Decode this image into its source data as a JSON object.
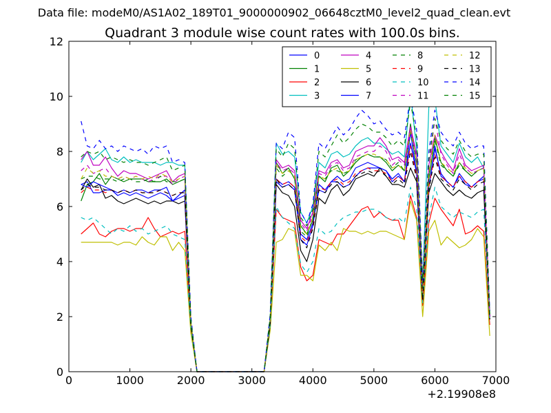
{
  "chart_data": {
    "type": "line",
    "supertitle": "Data file: modeM0/AS1A02_189T01_9000000902_06648cztM0_level2_quad_clean.evt",
    "title": "Quadrant 3 module wise count rates with 100.0s bins.",
    "xlabel": "",
    "ylabel": "",
    "x_offset_label": "+2.19908e8",
    "xlim": [
      0,
      7000
    ],
    "ylim": [
      0,
      12
    ],
    "xticks": [
      "0",
      "1000",
      "2000",
      "3000",
      "4000",
      "5000",
      "6000",
      "7000"
    ],
    "yticks": [
      "0",
      "2",
      "4",
      "6",
      "8",
      "10",
      "12"
    ],
    "grid": false,
    "legend_position": "top-right",
    "x": [
      200,
      300,
      400,
      500,
      600,
      700,
      800,
      900,
      1000,
      1100,
      1200,
      1300,
      1400,
      1500,
      1600,
      1700,
      1800,
      1900,
      2000,
      2100,
      2200,
      2300,
      2400,
      2500,
      2600,
      2700,
      2800,
      2900,
      3000,
      3100,
      3200,
      3300,
      3400,
      3500,
      3600,
      3700,
      3800,
      3900,
      4000,
      4100,
      4200,
      4300,
      4400,
      4500,
      4600,
      4700,
      4800,
      4900,
      5000,
      5100,
      5200,
      5300,
      5400,
      5500,
      5600,
      5700,
      5800,
      5900,
      6000,
      6100,
      6200,
      6300,
      6400,
      6500,
      6600,
      6700,
      6800,
      6900
    ],
    "series": [
      {
        "name": "0",
        "color": "#0000ff",
        "dash": false,
        "values": [
          6.8,
          6.9,
          6.5,
          6.5,
          6.6,
          6.6,
          6.5,
          6.6,
          6.5,
          6.6,
          6.6,
          6.5,
          6.6,
          6.6,
          6.7,
          6.2,
          6.4,
          6.6,
          1.8,
          0,
          0,
          0,
          0,
          0,
          0,
          0,
          0,
          0,
          0,
          0,
          0,
          1.8,
          7.0,
          6.8,
          6.9,
          6.7,
          5.0,
          4.8,
          5.4,
          6.6,
          6.5,
          6.9,
          6.9,
          6.7,
          6.8,
          7.1,
          7.3,
          7.4,
          7.4,
          7.4,
          7.3,
          6.9,
          7.1,
          6.9,
          8.7,
          7.2,
          2.8,
          6.7,
          8.1,
          7.2,
          6.9,
          6.7,
          7.2,
          6.9,
          6.7,
          6.9,
          7.1,
          2.0
        ]
      },
      {
        "name": "1",
        "color": "#008000",
        "dash": false,
        "values": [
          6.2,
          6.8,
          6.9,
          7.2,
          6.8,
          7.1,
          7.0,
          6.9,
          7.0,
          7.0,
          7.0,
          6.9,
          6.9,
          6.9,
          7.0,
          6.8,
          6.9,
          7.0,
          1.7,
          0,
          0,
          0,
          0,
          0,
          0,
          0,
          0,
          0,
          0,
          0,
          0,
          1.9,
          7.6,
          7.2,
          7.4,
          7.0,
          5.3,
          5.0,
          5.5,
          7.1,
          6.9,
          7.4,
          7.5,
          7.1,
          7.3,
          7.6,
          7.8,
          7.9,
          7.8,
          7.8,
          7.6,
          7.3,
          7.5,
          7.3,
          9.0,
          7.5,
          2.9,
          7.0,
          8.5,
          7.6,
          7.3,
          7.1,
          7.6,
          7.3,
          7.1,
          7.3,
          7.4,
          2.0
        ]
      },
      {
        "name": "2",
        "color": "#ff0000",
        "dash": false,
        "values": [
          5.0,
          5.2,
          5.4,
          5.0,
          4.9,
          5.1,
          5.2,
          5.2,
          5.1,
          5.2,
          5.2,
          5.6,
          5.2,
          4.9,
          5.0,
          5.1,
          5.0,
          5.1,
          1.5,
          0,
          0,
          0,
          0,
          0,
          0,
          0,
          0,
          0,
          0,
          0,
          0,
          1.6,
          5.9,
          5.6,
          5.5,
          5.4,
          3.8,
          3.3,
          3.5,
          4.8,
          4.7,
          4.6,
          5.0,
          5.0,
          5.3,
          5.6,
          5.9,
          6.0,
          5.6,
          5.8,
          5.6,
          5.5,
          5.5,
          4.8,
          6.4,
          5.6,
          2.4,
          5.4,
          6.3,
          5.9,
          5.6,
          5.3,
          5.9,
          5.0,
          5.1,
          5.3,
          5.1,
          1.7
        ]
      },
      {
        "name": "3",
        "color": "#00bfbf",
        "dash": false,
        "values": [
          7.6,
          8.0,
          7.7,
          7.9,
          8.1,
          7.7,
          7.6,
          7.8,
          7.6,
          7.7,
          7.6,
          7.6,
          7.6,
          7.5,
          7.6,
          7.6,
          7.5,
          7.5,
          1.8,
          0,
          0,
          0,
          0,
          0,
          0,
          0,
          0,
          0,
          0,
          0,
          0,
          2.0,
          8.3,
          7.9,
          8.0,
          7.8,
          5.8,
          5.4,
          6.0,
          7.6,
          7.4,
          7.9,
          8.0,
          7.8,
          7.9,
          8.2,
          8.4,
          8.5,
          8.3,
          8.3,
          8.1,
          7.9,
          8.0,
          7.8,
          10.1,
          8.1,
          3.2,
          9.6,
          9.9,
          8.2,
          7.9,
          7.6,
          8.3,
          7.8,
          7.6,
          7.8,
          7.4,
          2.1
        ]
      },
      {
        "name": "4",
        "color": "#bf00bf",
        "dash": false,
        "values": [
          7.7,
          8.0,
          7.5,
          7.5,
          7.8,
          7.4,
          7.1,
          7.3,
          7.2,
          7.2,
          7.1,
          7.0,
          7.1,
          7.2,
          7.3,
          6.9,
          7.1,
          7.2,
          1.8,
          0,
          0,
          0,
          0,
          0,
          0,
          0,
          0,
          0,
          0,
          0,
          0,
          1.9,
          7.7,
          7.4,
          7.5,
          7.3,
          5.5,
          5.2,
          5.8,
          7.3,
          7.2,
          7.6,
          7.7,
          7.4,
          7.5,
          8.0,
          8.1,
          8.2,
          8.2,
          8.5,
          8.2,
          7.7,
          7.8,
          7.6,
          8.9,
          7.9,
          3.0,
          7.5,
          8.6,
          8.0,
          7.6,
          7.3,
          8.1,
          7.5,
          7.3,
          7.4,
          7.5,
          2.0
        ]
      },
      {
        "name": "5",
        "color": "#bfbf00",
        "dash": false,
        "values": [
          4.7,
          4.7,
          4.7,
          4.7,
          4.7,
          4.7,
          4.6,
          4.7,
          4.7,
          4.6,
          4.9,
          4.7,
          4.6,
          4.9,
          4.9,
          4.4,
          4.7,
          4.4,
          1.4,
          0,
          0,
          0,
          0,
          0,
          0,
          0,
          0,
          0,
          0,
          0,
          0,
          1.5,
          4.7,
          4.8,
          5.2,
          5.1,
          3.5,
          3.5,
          3.3,
          4.6,
          4.4,
          4.7,
          4.4,
          5.2,
          5.1,
          5.1,
          5.0,
          5.1,
          5.0,
          5.1,
          5.1,
          5.0,
          4.9,
          4.8,
          6.2,
          5.5,
          2.0,
          5.1,
          5.5,
          4.6,
          4.9,
          4.7,
          4.5,
          4.6,
          4.8,
          5.2,
          4.9,
          1.3
        ]
      },
      {
        "name": "6",
        "color": "#000000",
        "dash": false,
        "values": [
          6.6,
          7.0,
          6.7,
          6.8,
          6.3,
          6.4,
          6.2,
          6.1,
          6.2,
          6.3,
          6.2,
          6.1,
          6.2,
          6.1,
          6.2,
          6.2,
          6.1,
          6.2,
          1.7,
          0,
          0,
          0,
          0,
          0,
          0,
          0,
          0,
          0,
          0,
          0,
          0,
          1.7,
          6.8,
          6.5,
          6.4,
          6.0,
          4.4,
          4.0,
          4.8,
          6.3,
          6.1,
          6.6,
          6.8,
          6.4,
          6.6,
          7.0,
          7.1,
          7.2,
          7.1,
          7.4,
          7.1,
          6.8,
          6.8,
          6.7,
          7.4,
          6.9,
          2.6,
          6.5,
          7.2,
          6.9,
          6.6,
          6.4,
          6.6,
          6.4,
          6.3,
          6.5,
          6.6,
          1.9
        ]
      },
      {
        "name": "7",
        "color": "#0000ff",
        "dash": false,
        "values": [
          6.8,
          6.7,
          6.9,
          6.8,
          6.7,
          6.6,
          6.4,
          6.5,
          6.4,
          6.5,
          6.4,
          6.3,
          6.4,
          6.5,
          6.4,
          6.2,
          6.3,
          6.4,
          1.7,
          0,
          0,
          0,
          0,
          0,
          0,
          0,
          0,
          0,
          0,
          0,
          0,
          1.8,
          6.9,
          6.7,
          6.8,
          6.6,
          4.8,
          4.6,
          5.3,
          6.8,
          6.6,
          6.9,
          7.1,
          6.9,
          7.0,
          7.4,
          7.5,
          7.6,
          7.5,
          7.4,
          7.3,
          7.0,
          7.2,
          6.9,
          8.3,
          7.2,
          2.7,
          6.7,
          8.2,
          7.1,
          6.9,
          6.7,
          7.1,
          6.8,
          6.7,
          6.9,
          7.0,
          2.0
        ]
      },
      {
        "name": "8",
        "color": "#008000",
        "dash": true,
        "values": [
          7.0,
          7.1,
          7.1,
          7.0,
          7.0,
          7.0,
          6.9,
          7.0,
          7.0,
          6.9,
          6.9,
          7.0,
          6.9,
          7.1,
          6.9,
          6.9,
          6.9,
          7.0,
          1.7,
          0,
          0,
          0,
          0,
          0,
          0,
          0,
          0,
          0,
          0,
          0,
          0,
          1.9,
          7.4,
          7.1,
          7.3,
          7.1,
          5.1,
          4.9,
          5.6,
          7.1,
          7.0,
          7.3,
          7.3,
          7.2,
          7.3,
          7.7,
          7.8,
          7.9,
          7.8,
          7.8,
          7.7,
          7.4,
          7.6,
          7.3,
          8.7,
          7.6,
          2.8,
          7.1,
          8.4,
          7.5,
          7.3,
          7.1,
          7.5,
          7.3,
          7.1,
          7.3,
          7.4,
          2.0
        ]
      },
      {
        "name": "9",
        "color": "#ff0000",
        "dash": true,
        "values": [
          6.5,
          6.7,
          6.6,
          6.6,
          6.5,
          6.6,
          6.5,
          6.6,
          6.5,
          6.6,
          6.5,
          6.5,
          6.5,
          6.6,
          6.5,
          6.4,
          6.5,
          6.5,
          1.7,
          0,
          0,
          0,
          0,
          0,
          0,
          0,
          0,
          0,
          0,
          0,
          0,
          1.8,
          7.0,
          6.8,
          6.9,
          6.7,
          4.9,
          4.7,
          5.3,
          6.7,
          6.6,
          6.9,
          7.0,
          6.8,
          6.9,
          7.2,
          7.3,
          7.4,
          7.3,
          7.3,
          7.2,
          6.9,
          7.1,
          6.9,
          8.2,
          7.1,
          2.7,
          6.7,
          7.9,
          7.1,
          6.9,
          6.7,
          7.1,
          6.9,
          6.7,
          6.9,
          7.0,
          1.9
        ]
      },
      {
        "name": "10",
        "color": "#00bfbf",
        "dash": true,
        "values": [
          5.6,
          5.5,
          5.6,
          5.4,
          5.2,
          5.0,
          5.2,
          5.1,
          5.3,
          5.1,
          5.2,
          5.0,
          5.1,
          5.2,
          5.3,
          5.0,
          4.9,
          4.8,
          1.6,
          0,
          0,
          0,
          0,
          0,
          0,
          0,
          0,
          0,
          0,
          0,
          0,
          1.7,
          6.0,
          5.6,
          5.4,
          5.2,
          3.9,
          3.6,
          4.0,
          5.2,
          5.0,
          5.1,
          5.4,
          5.6,
          5.7,
          5.8,
          5.8,
          5.9,
          5.9,
          5.8,
          5.6,
          5.5,
          5.6,
          5.4,
          6.7,
          5.9,
          2.5,
          5.6,
          6.7,
          6.0,
          5.8,
          5.6,
          5.8,
          5.7,
          5.6,
          5.8,
          5.9,
          1.8
        ]
      },
      {
        "name": "11",
        "color": "#bf00bf",
        "dash": true,
        "values": [
          7.3,
          7.5,
          7.2,
          7.3,
          7.4,
          7.1,
          7.0,
          7.1,
          7.0,
          7.1,
          7.0,
          6.9,
          7.0,
          7.1,
          7.1,
          6.8,
          7.0,
          7.1,
          1.8,
          0,
          0,
          0,
          0,
          0,
          0,
          0,
          0,
          0,
          0,
          0,
          0,
          1.9,
          7.6,
          7.3,
          7.4,
          7.2,
          5.4,
          5.1,
          5.7,
          7.2,
          7.1,
          7.5,
          7.6,
          7.3,
          7.4,
          7.8,
          7.9,
          8.0,
          8.0,
          8.2,
          8.0,
          7.5,
          7.7,
          7.5,
          8.8,
          7.8,
          2.9,
          7.4,
          9.2,
          7.9,
          7.5,
          7.2,
          7.9,
          7.4,
          7.2,
          7.3,
          7.4,
          2.0
        ]
      },
      {
        "name": "12",
        "color": "#bfbf00",
        "dash": true,
        "values": [
          7.0,
          7.4,
          7.2,
          7.3,
          7.1,
          7.1,
          7.0,
          7.1,
          7.0,
          7.1,
          7.0,
          7.1,
          7.0,
          7.2,
          7.1,
          6.9,
          7.0,
          7.1,
          1.8,
          0,
          0,
          0,
          0,
          0,
          0,
          0,
          0,
          0,
          0,
          0,
          0,
          1.9,
          7.5,
          7.2,
          7.3,
          7.1,
          5.2,
          5.0,
          5.6,
          7.1,
          7.0,
          7.3,
          7.4,
          7.2,
          7.3,
          7.7,
          7.8,
          7.9,
          7.9,
          7.8,
          7.7,
          7.4,
          7.5,
          7.3,
          8.8,
          7.6,
          2.8,
          7.2,
          8.6,
          7.6,
          7.4,
          7.2,
          7.6,
          7.4,
          7.2,
          7.3,
          7.4,
          2.0
        ]
      },
      {
        "name": "13",
        "color": "#000000",
        "dash": true,
        "values": [
          6.6,
          6.8,
          6.7,
          6.7,
          6.6,
          6.6,
          6.5,
          6.6,
          6.5,
          6.6,
          6.5,
          6.5,
          6.5,
          6.6,
          6.5,
          6.4,
          6.5,
          6.5,
          1.7,
          0,
          0,
          0,
          0,
          0,
          0,
          0,
          0,
          0,
          0,
          0,
          0,
          1.8,
          7.0,
          6.7,
          6.8,
          6.6,
          4.8,
          4.5,
          5.2,
          6.6,
          6.5,
          6.8,
          6.9,
          6.7,
          6.8,
          7.1,
          7.2,
          7.3,
          7.2,
          7.3,
          7.1,
          6.8,
          7.0,
          6.8,
          8.0,
          7.0,
          2.6,
          6.6,
          7.8,
          7.0,
          6.8,
          6.6,
          7.0,
          6.8,
          6.6,
          6.8,
          6.9,
          1.9
        ]
      },
      {
        "name": "14",
        "color": "#0000ff",
        "dash": true,
        "values": [
          9.1,
          8.2,
          8.1,
          8.4,
          8.1,
          8.2,
          8.0,
          8.2,
          8.1,
          8.0,
          8.1,
          7.9,
          8.2,
          8.1,
          8.2,
          7.6,
          7.7,
          7.6,
          2.0,
          0,
          0,
          0,
          0,
          0,
          0,
          0,
          0,
          0,
          0,
          0,
          0,
          2.1,
          8.3,
          8.1,
          8.7,
          8.5,
          5.8,
          5.4,
          6.1,
          8.3,
          8.1,
          8.5,
          8.9,
          8.6,
          8.8,
          9.2,
          9.5,
          9.3,
          9.0,
          9.1,
          8.8,
          8.6,
          8.7,
          8.5,
          10.0,
          8.8,
          3.3,
          8.0,
          9.5,
          8.7,
          8.4,
          8.2,
          8.7,
          8.3,
          8.1,
          8.2,
          8.2,
          2.2
        ]
      },
      {
        "name": "15",
        "color": "#008000",
        "dash": true,
        "values": [
          7.8,
          8.0,
          7.9,
          8.0,
          7.7,
          7.8,
          7.7,
          7.6,
          7.7,
          7.6,
          7.6,
          7.5,
          7.6,
          7.7,
          7.8,
          7.3,
          7.4,
          7.5,
          1.9,
          0,
          0,
          0,
          0,
          0,
          0,
          0,
          0,
          0,
          0,
          0,
          0,
          2.0,
          8.1,
          7.8,
          8.3,
          8.1,
          5.6,
          5.3,
          5.9,
          8.0,
          7.8,
          8.2,
          8.6,
          8.3,
          8.5,
          8.8,
          9.0,
          8.9,
          8.7,
          8.7,
          8.5,
          8.2,
          8.4,
          8.2,
          9.8,
          8.5,
          3.2,
          7.7,
          9.2,
          8.4,
          8.1,
          7.9,
          8.4,
          8.0,
          7.8,
          7.9,
          7.9,
          2.1
        ]
      }
    ]
  }
}
